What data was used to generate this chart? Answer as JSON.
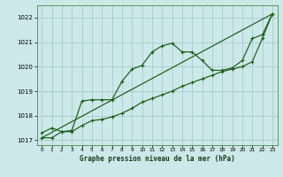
{
  "bg_color": "#cce8e8",
  "line_color": "#1a5c1a",
  "grid_color": "#aacccc",
  "xlabel": "Graphe pression niveau de la mer (hPa)",
  "ylim": [
    1016.8,
    1022.5
  ],
  "xlim": [
    -0.5,
    23.5
  ],
  "yticks": [
    1017,
    1018,
    1019,
    1020,
    1021,
    1022
  ],
  "xticks": [
    0,
    1,
    2,
    3,
    4,
    5,
    6,
    7,
    8,
    9,
    10,
    11,
    12,
    13,
    14,
    15,
    16,
    17,
    18,
    19,
    20,
    21,
    22,
    23
  ],
  "line1_x": [
    0,
    1,
    2,
    3,
    4,
    5,
    6,
    7,
    8,
    9,
    10,
    11,
    12,
    13,
    14,
    15,
    16,
    17,
    18,
    19,
    20,
    21,
    22,
    23
  ],
  "line1_y": [
    1017.3,
    1017.5,
    1017.35,
    1017.4,
    1018.6,
    1018.65,
    1018.65,
    1018.65,
    1019.4,
    1019.9,
    1020.05,
    1020.6,
    1020.85,
    1020.95,
    1020.6,
    1020.6,
    1020.25,
    1019.85,
    1019.85,
    1019.95,
    1020.25,
    1021.15,
    1021.3,
    1022.15
  ],
  "line2_x": [
    0,
    1,
    2,
    3,
    4,
    5,
    6,
    7,
    8,
    9,
    10,
    11,
    12,
    13,
    14,
    15,
    16,
    17,
    18,
    19,
    20,
    21,
    22,
    23
  ],
  "line2_y": [
    1017.1,
    1017.1,
    1017.35,
    1017.35,
    1017.6,
    1017.8,
    1017.85,
    1017.95,
    1018.1,
    1018.3,
    1018.55,
    1018.7,
    1018.85,
    1019.0,
    1019.2,
    1019.35,
    1019.5,
    1019.65,
    1019.8,
    1019.9,
    1020.0,
    1020.2,
    1021.15,
    1022.15
  ],
  "line3_x": [
    0,
    23
  ],
  "line3_y": [
    1017.1,
    1022.15
  ]
}
